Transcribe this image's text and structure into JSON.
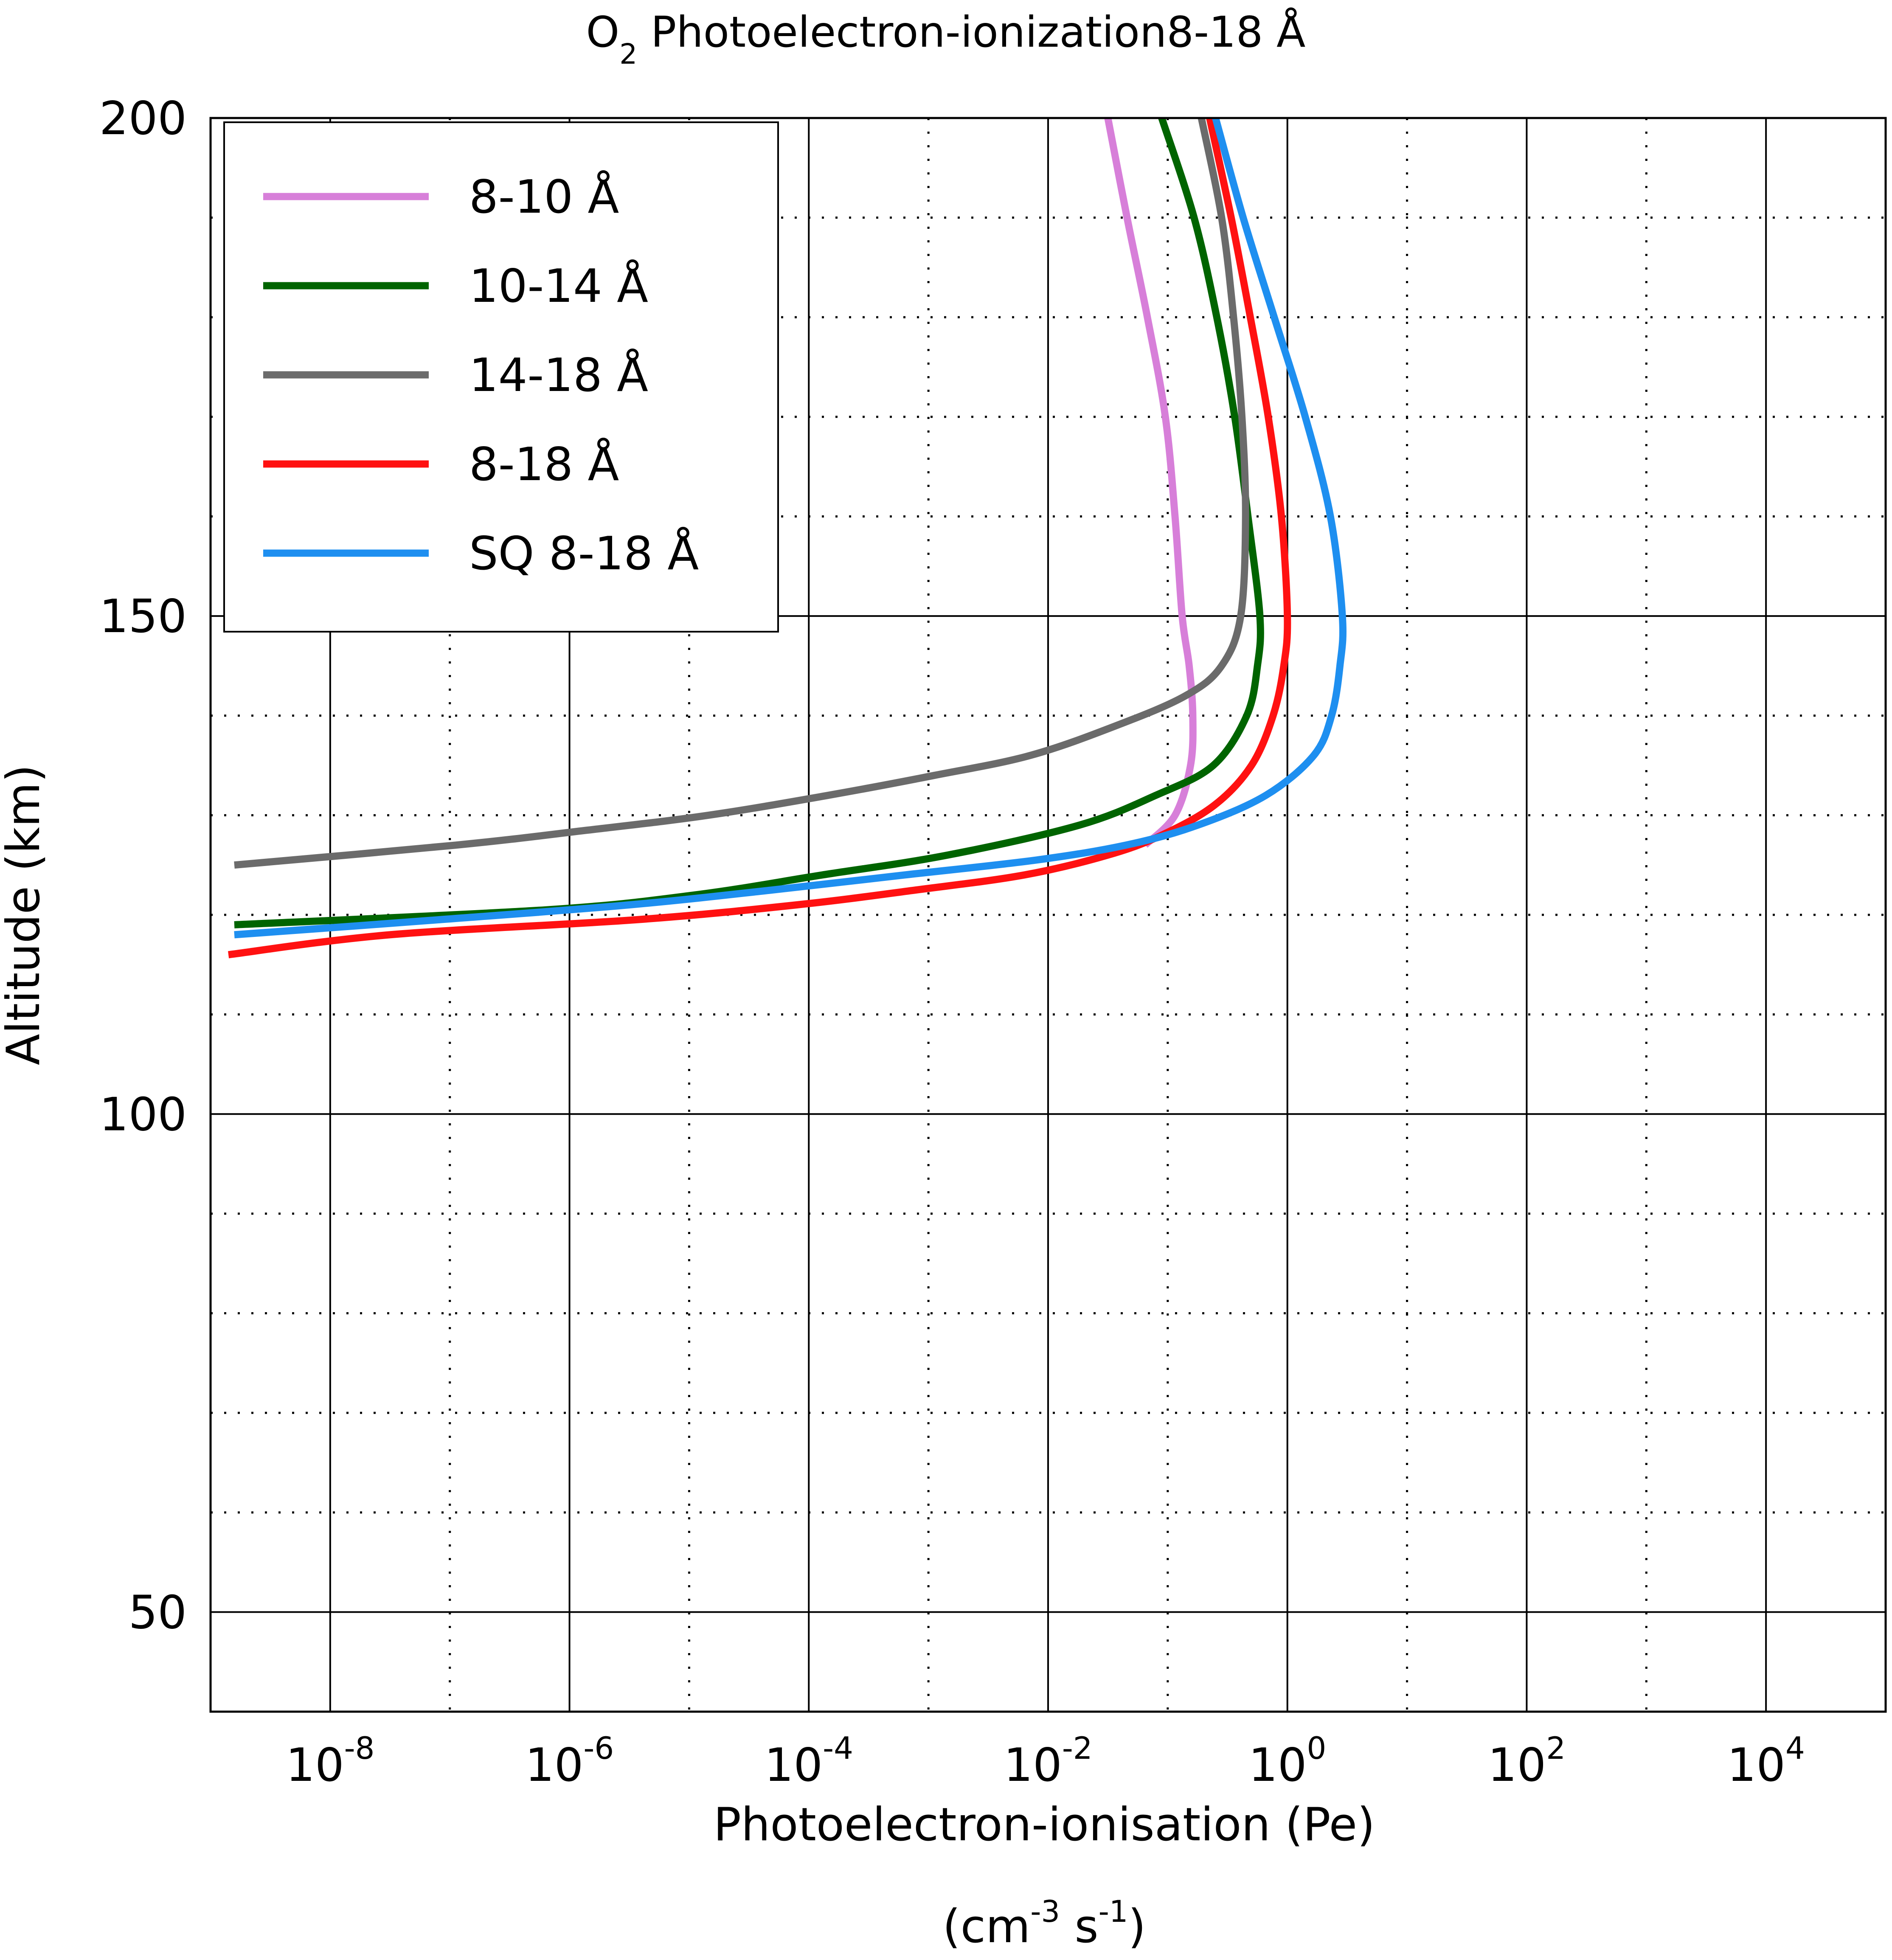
{
  "chart_data": {
    "type": "line",
    "title": {
      "main": "O",
      "sub": "2",
      "rest": " Photoelectron-ionization8-18 Å"
    },
    "xlabel": "Photoelectron-ionisation (Pe)",
    "xlabel_units": "(cm-3 s-1)",
    "xlabel_units_parts": [
      "(cm",
      "-3",
      " s",
      "-1",
      ")"
    ],
    "ylabel": "Altitude (km)",
    "x_scale": "log",
    "x_range_exponent": [
      -9,
      5
    ],
    "xlim": [
      1e-09,
      100000.0
    ],
    "ylim": [
      40,
      200
    ],
    "x_ticks": [
      {
        "base": "10",
        "exp": "-8"
      },
      {
        "base": "10",
        "exp": "-6"
      },
      {
        "base": "10",
        "exp": "-4"
      },
      {
        "base": "10",
        "exp": "-2"
      },
      {
        "base": "10",
        "exp": "0"
      },
      {
        "base": "10",
        "exp": "2"
      },
      {
        "base": "10",
        "exp": "4"
      }
    ],
    "x_tick_exponents": [
      -8,
      -6,
      -4,
      -2,
      0,
      2,
      4
    ],
    "x_minor_exponents": [
      -7,
      -5,
      -3,
      -1,
      1,
      3
    ],
    "y_ticks": [
      "50",
      "100",
      "150",
      "200"
    ],
    "y_tick_values": [
      50,
      100,
      150,
      200
    ],
    "y_minor_values": [
      60,
      70,
      80,
      90,
      110,
      120,
      130,
      140,
      160,
      170,
      180,
      190
    ],
    "grid": {
      "major": "solid",
      "minor": "dotted"
    },
    "legend_position": "top-left",
    "series": [
      {
        "name": "8-10 Å",
        "color": "#d77fd9",
        "points": [
          [
            0.0316,
            200
          ],
          [
            0.0457,
            190
          ],
          [
            0.0676,
            180
          ],
          [
            0.0955,
            170
          ],
          [
            0.115,
            160
          ],
          [
            0.132,
            150
          ],
          [
            0.151,
            145
          ],
          [
            0.162,
            140
          ],
          [
            0.155,
            135
          ],
          [
            0.115,
            130
          ],
          [
            0.0646,
            127
          ]
        ]
      },
      {
        "name": "10-14 Å",
        "color": "#006400",
        "points": [
          [
            0.0891,
            200
          ],
          [
            0.166,
            190
          ],
          [
            0.257,
            180
          ],
          [
            0.363,
            170
          ],
          [
            0.468,
            160
          ],
          [
            0.589,
            150
          ],
          [
            0.562,
            145
          ],
          [
            0.457,
            140
          ],
          [
            0.24,
            135
          ],
          [
            0.0794,
            132
          ],
          [
            0.0182,
            129
          ],
          [
            0.00145,
            126
          ],
          [
            0.000129,
            124
          ],
          [
            1.12e-05,
            122
          ],
          [
            6.31e-07,
            120.5
          ],
          [
            1.58e-09,
            119
          ]
        ]
      },
      {
        "name": "14-18 Å",
        "color": "#6b6b6b",
        "points": [
          [
            0.191,
            200
          ],
          [
            0.282,
            190
          ],
          [
            0.355,
            180
          ],
          [
            0.417,
            170
          ],
          [
            0.447,
            160
          ],
          [
            0.407,
            150
          ],
          [
            0.282,
            145
          ],
          [
            0.141,
            142
          ],
          [
            0.0372,
            139
          ],
          [
            0.00708,
            136
          ],
          [
            0.00112,
            134
          ],
          [
            0.000145,
            132
          ],
          [
            1.45e-05,
            130
          ],
          [
            1.41e-06,
            128.5
          ],
          [
            1.12e-07,
            127
          ],
          [
            1.58e-09,
            125
          ]
        ]
      },
      {
        "name": "8-18 Å",
        "color": "#ff1111",
        "points": [
          [
            0.224,
            200
          ],
          [
            0.339,
            190
          ],
          [
            0.49,
            180
          ],
          [
            0.692,
            170
          ],
          [
            0.891,
            160
          ],
          [
            1.0,
            150
          ],
          [
            0.933,
            145
          ],
          [
            0.759,
            140
          ],
          [
            0.501,
            135
          ],
          [
            0.245,
            131
          ],
          [
            0.0891,
            128
          ],
          [
            0.0316,
            126
          ],
          [
            0.00631,
            124
          ],
          [
            0.000794,
            122.5
          ],
          [
            7.94e-05,
            121
          ],
          [
            3.55e-06,
            119.5
          ],
          [
            3.16e-08,
            118
          ],
          [
            1.41e-09,
            116
          ]
        ]
      },
      {
        "name": "SQ 8-18 Å",
        "color": "#1e8ff0",
        "points": [
          [
            0.251,
            200
          ],
          [
            0.427,
            190
          ],
          [
            0.776,
            180
          ],
          [
            1.41,
            170
          ],
          [
            2.29,
            160
          ],
          [
            2.88,
            150
          ],
          [
            2.75,
            145
          ],
          [
            2.34,
            140
          ],
          [
            1.66,
            136
          ],
          [
            0.661,
            132
          ],
          [
            0.178,
            129
          ],
          [
            0.0447,
            127
          ],
          [
            0.00794,
            125.5
          ],
          [
            0.000631,
            124
          ],
          [
            5.01e-05,
            122.5
          ],
          [
            3.16e-06,
            121
          ],
          [
            7.94e-08,
            119.5
          ],
          [
            1.58e-09,
            118
          ]
        ]
      }
    ]
  }
}
